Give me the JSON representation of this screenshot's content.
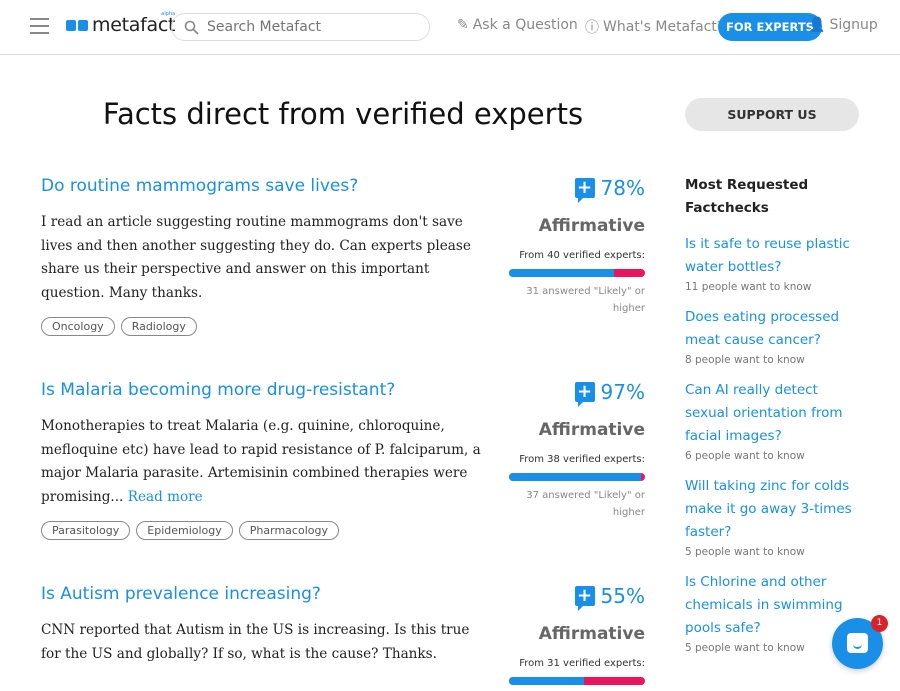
{
  "header": {
    "logo": "metafact",
    "logo_tag": "alpha",
    "search_placeholder": "Search Metafact",
    "ask": "Ask a Question",
    "whats": "What's Metafact?",
    "experts": "FOR EXPERTS",
    "signup": "Signup"
  },
  "page_title": "Facts direct from verified experts",
  "support": "SUPPORT US",
  "accent": "#1a8fe8",
  "questions": [
    {
      "title": "Do routine mammograms save lives?",
      "body": "I read an article suggesting routine mammograms don't save lives and then another suggesting they do. Can experts please share us their perspective and answer on this important question. Many thanks.",
      "read_more": "",
      "tags": [
        "Oncology",
        "Radiology"
      ],
      "pct": "78%",
      "pct_value": 78,
      "verdict": "Affirmative",
      "from": "From 40 verified experts:",
      "likely_fraction": 0.775,
      "caption": "31 answered \"Likely\" or higher"
    },
    {
      "title": "Is Malaria becoming more drug-resistant?",
      "body": "Monotherapies to treat Malaria (e.g. quinine, chloroquine, mefloquine etc) have lead to rapid resistance of P. falciparum, a major Malaria parasite. Artemisinin combined therapies were promising...",
      "read_more": "Read more",
      "tags": [
        "Parasitology",
        "Epidemiology",
        "Pharmacology"
      ],
      "pct": "97%",
      "pct_value": 97,
      "verdict": "Affirmative",
      "from": "From 38 verified experts:",
      "likely_fraction": 0.974,
      "caption": "37 answered \"Likely\" or higher"
    },
    {
      "title": "Is Autism prevalence increasing?",
      "body": "CNN reported that Autism in the US is increasing. Is this true for the US and globally? If so, what is the cause? Thanks.",
      "read_more": "",
      "tags": [],
      "pct": "55%",
      "pct_value": 55,
      "verdict": "Affirmative",
      "from": "From 31 verified experts:",
      "likely_fraction": 0.55,
      "caption": ""
    }
  ],
  "sidebar": {
    "title": "Most Requested Factchecks",
    "items": [
      {
        "q": "Is it safe to reuse plastic water bottles?",
        "n": "11 people want to know"
      },
      {
        "q": "Does eating processed meat cause cancer?",
        "n": "8 people want to know"
      },
      {
        "q": "Can AI really detect sexual orientation from facial images?",
        "n": "6 people want to know"
      },
      {
        "q": "Will taking zinc for colds make it go away 3-times faster?",
        "n": "5 people want to know"
      },
      {
        "q": "Is Chlorine and other chemicals in swimming pools safe?",
        "n": "5 people want to know"
      }
    ]
  },
  "chat_badge": "1"
}
